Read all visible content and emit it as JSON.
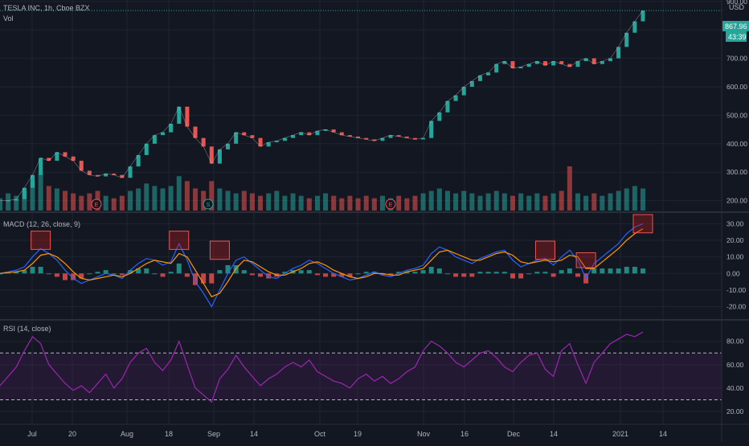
{
  "symbol_title": "TESLA INC, 1h, Cboe BZX",
  "volume_label": "Vol",
  "currency": "USD",
  "price_badge": "867.96",
  "countdown_badge": "43:39",
  "colors": {
    "background": "#131722",
    "grid": "#1f2431",
    "up": "#26a69a",
    "down": "#ef5350",
    "macd_line": "#2962ff",
    "signal_line": "#ff9800",
    "rsi_line": "#9c27b0",
    "highlight": "#b71c1c",
    "axis_text": "#b2b5be"
  },
  "x_axis_labels": [
    "Jul",
    "20",
    "Aug",
    "18",
    "Sep",
    "14",
    "Oct",
    "19",
    "Nov",
    "16",
    "Dec",
    "14",
    "2021",
    "14"
  ],
  "events": [
    "E",
    "S",
    "E"
  ],
  "chart_data": [
    {
      "type": "line",
      "name": "price",
      "title": "TESLA INC, 1h, Cboe BZX",
      "y_ticks": [
        200,
        300,
        400,
        500,
        600,
        700,
        800,
        900
      ],
      "y_tick_labels": [
        "200.00",
        "300.00",
        "400.00",
        "500.00",
        "600.00",
        "700.00",
        "800.00",
        "900.00"
      ],
      "ylim": [
        165,
        905
      ],
      "x_labels": [
        "Jul",
        "20",
        "Aug",
        "18",
        "Sep",
        "14",
        "Oct",
        "19",
        "Nov",
        "16",
        "Dec",
        "14",
        "2021",
        "14"
      ],
      "series": [
        {
          "values": [
            200,
            200,
            205,
            245,
            290,
            350,
            340,
            370,
            355,
            340,
            305,
            290,
            285,
            295,
            290,
            280,
            320,
            360,
            400,
            430,
            440,
            470,
            530,
            460,
            420,
            390,
            330,
            380,
            400,
            440,
            430,
            420,
            390,
            405,
            410,
            420,
            430,
            440,
            430,
            445,
            450,
            440,
            430,
            425,
            420,
            415,
            410,
            420,
            430,
            425,
            420,
            415,
            420,
            480,
            510,
            550,
            570,
            600,
            620,
            640,
            650,
            680,
            690,
            665,
            670,
            680,
            690,
            675,
            690,
            680,
            670,
            690,
            700,
            680,
            690,
            700,
            740,
            790,
            830,
            868
          ]
        }
      ],
      "volume_values": [
        5,
        7,
        6,
        8,
        12,
        15,
        10,
        9,
        8,
        7,
        6,
        7,
        8,
        6,
        5,
        6,
        8,
        9,
        11,
        10,
        9,
        10,
        14,
        12,
        9,
        8,
        12,
        9,
        8,
        7,
        8,
        7,
        6,
        7,
        8,
        6,
        7,
        6,
        5,
        6,
        7,
        6,
        5,
        6,
        5,
        6,
        5,
        6,
        5,
        6,
        5,
        6,
        7,
        8,
        9,
        8,
        7,
        8,
        7,
        6,
        7,
        8,
        7,
        6,
        7,
        6,
        7,
        6,
        7,
        8,
        18,
        7,
        6,
        7,
        6,
        7,
        8,
        9,
        10,
        9
      ]
    },
    {
      "type": "line",
      "name": "macd",
      "title": "MACD (12, 26, close, 9)",
      "y_ticks": [
        -20,
        -10,
        0,
        10,
        20,
        30
      ],
      "y_tick_labels": [
        "-20.00",
        "-10.00",
        "0.00",
        "10.00",
        "20.00",
        "30.00"
      ],
      "ylim": [
        -27,
        36
      ],
      "series": [
        {
          "name": "MACD",
          "values": [
            0,
            1,
            2,
            4,
            10,
            15,
            12,
            8,
            2,
            -3,
            -6,
            -4,
            -2,
            0,
            -1,
            -3,
            2,
            6,
            9,
            8,
            5,
            7,
            18,
            8,
            -5,
            -12,
            -20,
            -10,
            0,
            8,
            10,
            6,
            2,
            -2,
            -3,
            0,
            3,
            5,
            8,
            6,
            3,
            0,
            -2,
            -4,
            -3,
            -1,
            1,
            -1,
            -2,
            0,
            2,
            3,
            5,
            12,
            16,
            14,
            10,
            8,
            6,
            9,
            11,
            13,
            14,
            8,
            4,
            6,
            8,
            9,
            5,
            10,
            14,
            8,
            -3,
            6,
            10,
            14,
            18,
            24,
            28,
            30
          ]
        },
        {
          "name": "Signal",
          "values": [
            0,
            0.5,
            1,
            2,
            6,
            11,
            12,
            10,
            6,
            1,
            -3,
            -4,
            -3,
            -2,
            -1,
            -2,
            0,
            3,
            6,
            8,
            7,
            6,
            12,
            10,
            2,
            -6,
            -14,
            -12,
            -5,
            3,
            8,
            7,
            4,
            1,
            -1,
            -1,
            1,
            3,
            6,
            7,
            5,
            2,
            0,
            -2,
            -3,
            -2,
            0,
            0,
            -1,
            -1,
            1,
            2,
            3,
            8,
            13,
            14,
            12,
            10,
            8,
            8,
            10,
            12,
            13,
            11,
            7,
            6,
            7,
            8,
            7,
            8,
            11,
            10,
            3,
            3,
            7,
            11,
            15,
            20,
            24,
            27
          ]
        }
      ]
    },
    {
      "type": "line",
      "name": "rsi",
      "title": "RSI (14, close)",
      "y_ticks": [
        20,
        40,
        60,
        80
      ],
      "y_tick_labels": [
        "20.00",
        "40.00",
        "60.00",
        "80.00"
      ],
      "ylim": [
        9,
        97
      ],
      "levels": [
        70,
        30
      ],
      "series": [
        {
          "values": [
            42,
            50,
            58,
            72,
            84,
            78,
            60,
            52,
            44,
            38,
            42,
            36,
            44,
            52,
            40,
            48,
            62,
            70,
            74,
            62,
            55,
            64,
            80,
            60,
            40,
            34,
            28,
            48,
            56,
            68,
            58,
            50,
            42,
            48,
            52,
            58,
            62,
            58,
            64,
            54,
            50,
            46,
            44,
            40,
            48,
            52,
            46,
            50,
            44,
            48,
            54,
            58,
            72,
            80,
            76,
            70,
            62,
            58,
            64,
            70,
            72,
            66,
            58,
            54,
            62,
            68,
            70,
            56,
            50,
            72,
            78,
            60,
            44,
            62,
            70,
            78,
            82,
            86,
            84,
            88
          ]
        }
      ]
    }
  ]
}
